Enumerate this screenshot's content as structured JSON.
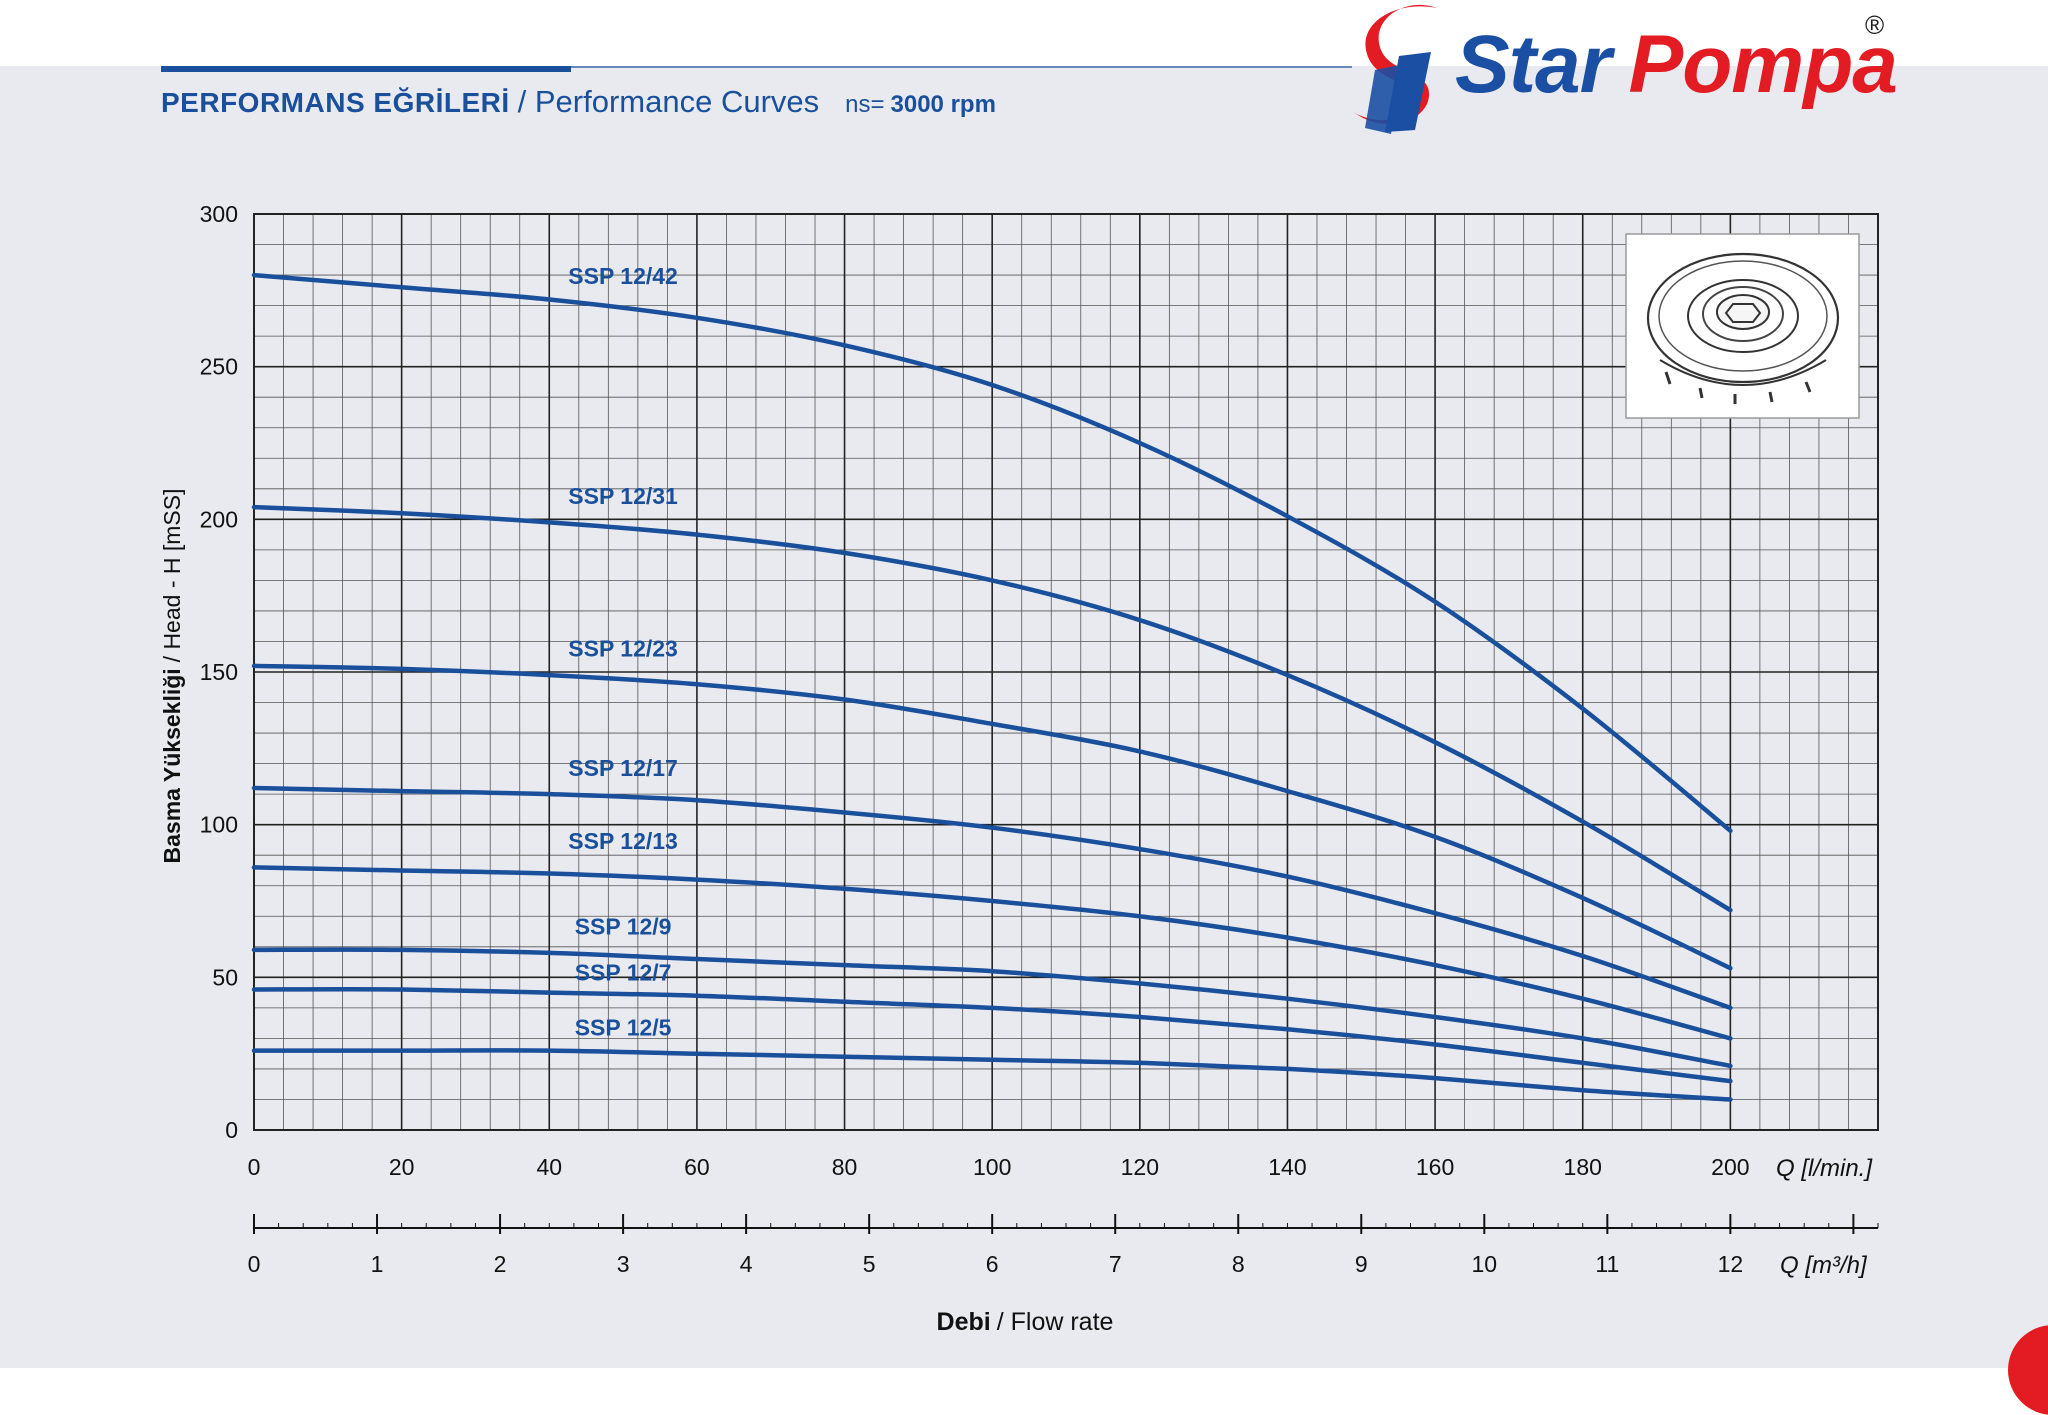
{
  "header": {
    "title_tr": "PERFORMANS EĞRİLERİ",
    "title_en": "/ Performance Curves",
    "speed_prefix": "ns=",
    "speed_value": "3000 rpm"
  },
  "logo": {
    "word1": "Star",
    "word2": "Pompa",
    "registered": "®"
  },
  "colors": {
    "curve": "#1a4f9c",
    "panel": "#e9eaef",
    "logo_blue": "#1b4fa3",
    "logo_red": "#e31b23"
  },
  "chart_data": {
    "type": "line",
    "ylabel_bold": "Basma Yüksekliği",
    "ylabel_rest": "/ Head - H [mSS]",
    "xlabel_bold": "Debi",
    "xlabel_rest": "/ Flow rate",
    "x_unit_lmin": "Q [l/min.]",
    "x_unit_m3h": "Q [m³/h]",
    "xlim": [
      0,
      220
    ],
    "ylim": [
      0,
      300
    ],
    "x_ticks": [
      0,
      20,
      40,
      60,
      80,
      100,
      120,
      140,
      160,
      180,
      200
    ],
    "y_ticks": [
      0,
      50,
      100,
      150,
      200,
      250,
      300
    ],
    "x2_ticks": [
      0,
      1,
      2,
      3,
      4,
      5,
      6,
      7,
      8,
      9,
      10,
      11,
      12
    ],
    "grid": true,
    "x": [
      0,
      20,
      40,
      60,
      80,
      100,
      120,
      140,
      160,
      180,
      200
    ],
    "series": [
      {
        "name": "SSP 12/42",
        "label_x": 50,
        "label_y": 277,
        "values": [
          280,
          276,
          272,
          266,
          257,
          244,
          225,
          201,
          173,
          138,
          98
        ]
      },
      {
        "name": "SSP 12/31",
        "label_x": 50,
        "label_y": 205,
        "values": [
          204,
          202,
          199,
          195,
          189,
          180,
          167,
          149,
          127,
          101,
          72
        ]
      },
      {
        "name": "SSP 12/23",
        "label_x": 50,
        "label_y": 155,
        "values": [
          152,
          151,
          149,
          146,
          141,
          133,
          124,
          111,
          96,
          76,
          53
        ]
      },
      {
        "name": "SSP 12/17",
        "label_x": 50,
        "label_y": 116,
        "values": [
          112,
          111,
          110,
          108,
          104,
          99,
          92,
          83,
          71,
          57,
          40
        ]
      },
      {
        "name": "SSP 12/13",
        "label_x": 50,
        "label_y": 92,
        "values": [
          86,
          85,
          84,
          82,
          79,
          75,
          70,
          63,
          54,
          43,
          30
        ]
      },
      {
        "name": "SSP 12/9",
        "label_x": 50,
        "label_y": 64,
        "values": [
          59,
          59,
          58,
          56,
          54,
          52,
          48,
          43,
          37,
          30,
          21
        ]
      },
      {
        "name": "SSP 12/7",
        "label_x": 50,
        "label_y": 49,
        "values": [
          46,
          46,
          45,
          44,
          42,
          40,
          37,
          33,
          28,
          22,
          16
        ]
      },
      {
        "name": "SSP 12/5",
        "label_x": 50,
        "label_y": 31,
        "values": [
          26,
          26,
          26,
          25,
          24,
          23,
          22,
          20,
          17,
          13,
          10
        ]
      }
    ]
  }
}
